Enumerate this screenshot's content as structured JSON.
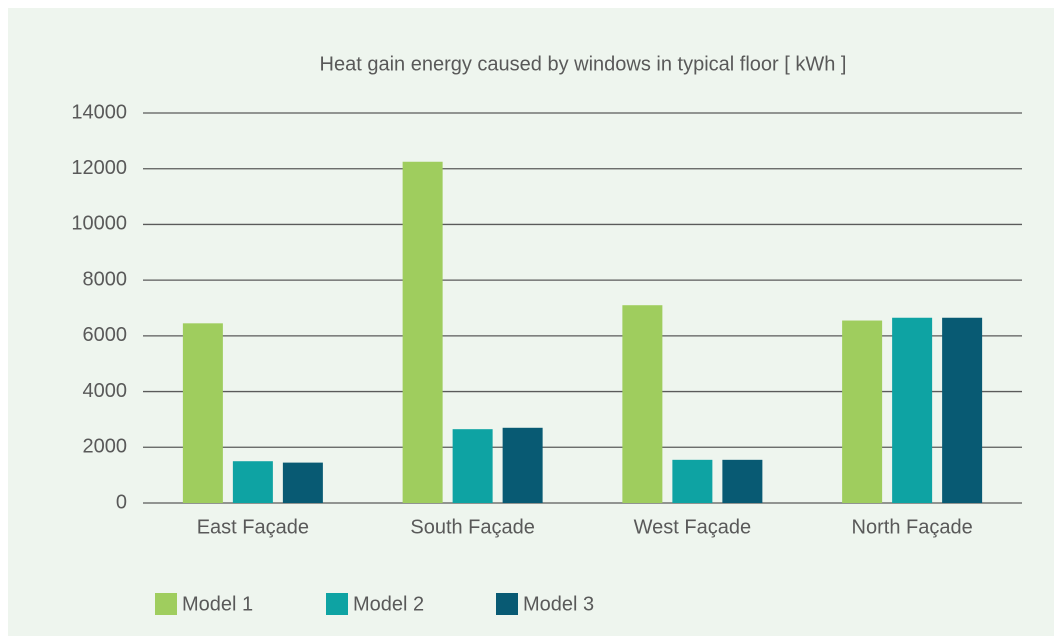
{
  "chart_data": {
    "type": "bar",
    "title": "Heat gain energy caused by windows in typical floor [ kWh ]",
    "categories": [
      "East Façade",
      "South Façade",
      "West Façade",
      "North Façade"
    ],
    "series": [
      {
        "name": "Model 1",
        "color": "#9fcd5e",
        "values": [
          6450,
          12250,
          7100,
          6550
        ]
      },
      {
        "name": "Model 2",
        "color": "#0ea3a3",
        "values": [
          1500,
          2650,
          1550,
          6650
        ]
      },
      {
        "name": "Model 3",
        "color": "#085a73",
        "values": [
          1450,
          2700,
          1550,
          6650
        ]
      }
    ],
    "ylim": [
      0,
      14000
    ],
    "yticks": [
      0,
      2000,
      4000,
      6000,
      8000,
      10000,
      12000,
      14000
    ],
    "grid": true,
    "legend": "bottom"
  }
}
